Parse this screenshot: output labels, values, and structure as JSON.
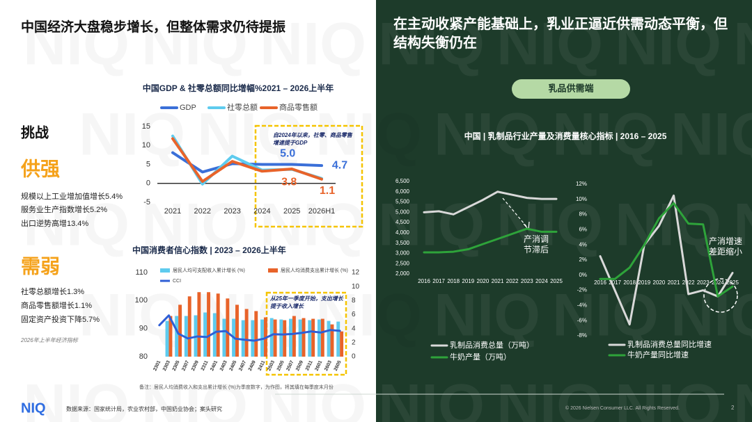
{
  "watermark": "NIQ",
  "left": {
    "title": "中国经济大盘稳步增长，但整体需求仍待提振",
    "challenge": "挑战",
    "supply": {
      "heading": "供强",
      "items": [
        "规模以上工业增加值增长5.4%",
        "服务业生产指数增长5.2%",
        "出口逆势高增13.4%"
      ]
    },
    "demand": {
      "heading": "需弱",
      "items": [
        "社零总额增长1.3%",
        "商品零售额增长1.1%",
        "固定资产投资下降5.7%"
      ]
    },
    "footnote": "2026年上半年经济指标"
  },
  "right": {
    "title": "在主动收紧产能基础上，乳业正逼近供需动态平衡，但结构失衡仍在",
    "pill": "乳品供需端"
  },
  "footer": {
    "logo": "NIQ",
    "source": "数据来源：国家统计局，农业农村部，中国奶业协会；案头研究",
    "copyright": "© 2026 Nielsen Consumer LLC. All Rights Reserved.",
    "page": "2"
  },
  "chart_data": [
    {
      "type": "line",
      "title": "中国GDP & 社零总额同比增幅%2021 – 2026上半年",
      "categories": [
        "2021",
        "2022",
        "2023",
        "2024",
        "2025",
        "2026H1"
      ],
      "series": [
        {
          "name": "GDP",
          "color": "#3a6fd8",
          "values": [
            8.1,
            3.0,
            5.2,
            5.0,
            5.0,
            4.7
          ],
          "value_labels": [
            null,
            null,
            null,
            null,
            "5.0",
            "4.7"
          ]
        },
        {
          "name": "社零总额",
          "color": "#5ecbee",
          "values": [
            12.5,
            -0.2,
            7.2,
            3.5,
            3.7,
            1.3
          ]
        },
        {
          "name": "商品零售额",
          "color": "#e8632a",
          "values": [
            11.8,
            0.5,
            5.8,
            3.2,
            3.8,
            1.1
          ],
          "value_labels": [
            null,
            null,
            null,
            null,
            "3.8",
            "1.1"
          ]
        }
      ],
      "ylim": [
        -5,
        15
      ],
      "yticks": [
        -5,
        0,
        5,
        10,
        15
      ],
      "grid": false,
      "annotation": "自2024年以来，社零、商品零售增速提于GDP"
    },
    {
      "type": "combo",
      "title": "中国消费者信心指数 | 2023 – 2026上半年",
      "categories": [
        "2301",
        "2303",
        "2305",
        "2307",
        "2309",
        "2311",
        "2401",
        "2403",
        "2405",
        "2407",
        "2409",
        "2411",
        "2503",
        "2505",
        "2507",
        "2509",
        "2511",
        "2601",
        "2603",
        "2605"
      ],
      "series": [
        {
          "name": "居民人均可支配收入累计增长 (%)",
          "type": "bar",
          "axis": "y2",
          "color": "#5ecbee",
          "values": [
            null,
            5.1,
            5.8,
            5.8,
            5.9,
            6.3,
            6.2,
            5.4,
            5.4,
            5.2,
            5.2,
            5.3,
            5.5,
            5.3,
            5.4,
            5.3,
            5.2,
            5.3,
            5.1,
            5.0
          ]
        },
        {
          "name": "居民人均消费支出累计增长 (%)",
          "type": "bar",
          "axis": "y2",
          "color": "#e8632a",
          "values": [
            null,
            5.8,
            7.4,
            8.6,
            9.2,
            9.2,
            9.0,
            8.3,
            7.4,
            6.8,
            6.5,
            5.6,
            5.3,
            5.2,
            5.8,
            5.5,
            5.4,
            5.4,
            4.6,
            3.6
          ]
        },
        {
          "name": "CCI",
          "type": "line",
          "color": "#2f5fd6",
          "values": [
            91.2,
            94.7,
            88.2,
            86.5,
            87.2,
            87.0,
            88.9,
            89.1,
            86.4,
            86.0,
            85.7,
            86.4,
            88.0,
            87.9,
            88.1,
            88.5,
            89.0,
            88.6,
            89.5,
            89.2
          ]
        }
      ],
      "ylim": [
        80,
        110
      ],
      "yticks": [
        80,
        90,
        100,
        110
      ],
      "y2lim": [
        0,
        12
      ],
      "y2ticks": [
        0,
        2,
        4,
        6,
        8,
        10,
        12
      ],
      "annotation": "从25年一季度开始，支出增长提于收入增长",
      "note": "备注：居民人均消费收入和支出累计增长 (%)为季度数字，为作图，将其填在每季度末月份"
    },
    {
      "type": "line",
      "title": "中国 | 乳制品行业产量及消费量核心指标 | 2016 – 2025",
      "categories": [
        "2016",
        "2017",
        "2018",
        "2019",
        "2020",
        "2021",
        "2022",
        "2023",
        "2024",
        "2025"
      ],
      "series": [
        {
          "name": "乳制品消费总量（万吨）",
          "color": "#d9d9d9",
          "values": [
            5000,
            5050,
            4900,
            5250,
            5600,
            6000,
            5850,
            5700,
            5650,
            5650
          ]
        },
        {
          "name": "牛奶产量（万吨）",
          "color": "#2ea33a",
          "values": [
            3050,
            3050,
            3080,
            3200,
            3450,
            3700,
            3950,
            4200,
            4050,
            4050
          ]
        }
      ],
      "ylim": [
        2000,
        6500
      ],
      "yticks": [
        {
          "value": 2000,
          "label": "2,000"
        },
        {
          "value": 2500,
          "label": "2,500"
        },
        {
          "value": 3000,
          "label": "3,000"
        },
        {
          "value": 3500,
          "label": "3,500"
        },
        {
          "value": 4000,
          "label": "4,000"
        },
        {
          "value": 4500,
          "label": "4,500"
        },
        {
          "value": 5000,
          "label": "5,000"
        },
        {
          "value": 5500,
          "label": "5,500"
        },
        {
          "value": 6000,
          "label": "6,000"
        },
        {
          "value": 6500,
          "label": "6,500"
        }
      ],
      "grid": false,
      "annotation": "产消调节滞后"
    },
    {
      "type": "line",
      "categories": [
        "2016",
        "2017",
        "2018",
        "2019",
        "2020",
        "2021",
        "2022",
        "2023",
        "2024",
        "2025"
      ],
      "series": [
        {
          "name": "乳制品消费总量同比增速",
          "color": "#d9d9d9",
          "values": [
            2.5,
            -2,
            -6.5,
            4,
            6.5,
            10.5,
            -2.5,
            -2,
            -2.8,
            0.3
          ]
        },
        {
          "name": "牛奶产量同比增速",
          "color": "#2ea33a",
          "values": [
            -0.5,
            -0.5,
            1,
            4,
            7.5,
            9.5,
            6.8,
            6.7,
            -2.8,
            -1.5
          ]
        }
      ],
      "ylim": [
        -8,
        12
      ],
      "yticks": [
        {
          "value": -8,
          "label": "-8%"
        },
        {
          "value": -6,
          "label": "-6%"
        },
        {
          "value": -4,
          "label": "-4%"
        },
        {
          "value": -2,
          "label": "-2%"
        },
        {
          "value": 0,
          "label": "0%"
        },
        {
          "value": 2,
          "label": "2%"
        },
        {
          "value": 4,
          "label": "4%"
        },
        {
          "value": 6,
          "label": "6%"
        },
        {
          "value": 8,
          "label": "8%"
        },
        {
          "value": 10,
          "label": "10%"
        },
        {
          "value": 12,
          "label": "12%"
        }
      ],
      "grid": false,
      "annotation": "产消增速差距缩小"
    }
  ]
}
